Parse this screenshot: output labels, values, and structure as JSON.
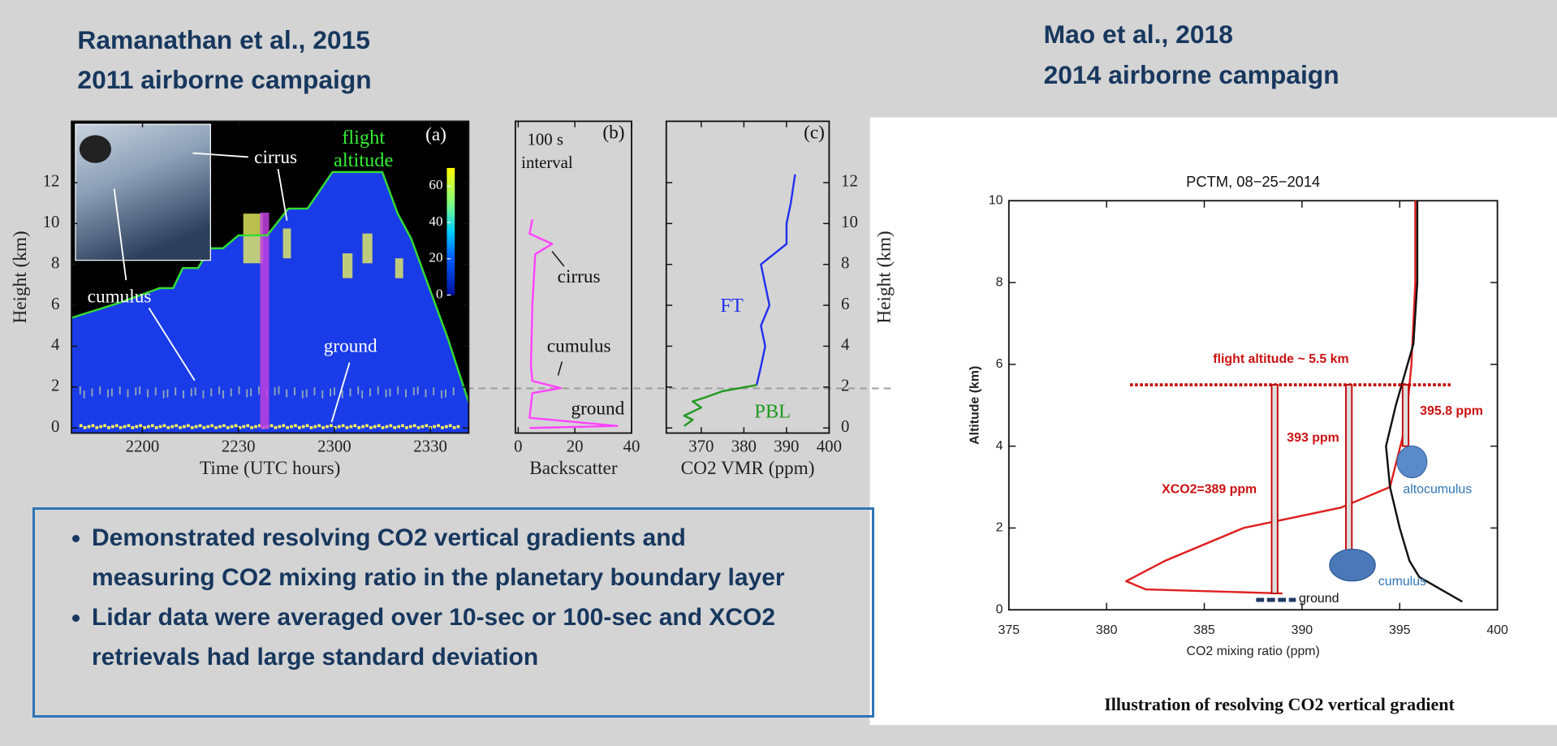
{
  "header": {
    "left_title": [
      "Ramanathan et al., 2015",
      "2011 airborne campaign"
    ],
    "right_title": [
      "Mao et al., 2018",
      "2014 airborne campaign"
    ]
  },
  "chart_data": [
    {
      "type": "area",
      "panel_label": "(a)",
      "title_lines": [
        "flight",
        "altitude"
      ],
      "annotations": [
        "cirrus",
        "cumulus",
        "ground"
      ],
      "xlabel": "Time (UTC hours)",
      "ylabel": "Height (km)",
      "xlim": [
        21.63,
        23.7
      ],
      "ylim": [
        -0.25,
        15
      ],
      "xticks": [
        {
          "value": 22,
          "label": "2200"
        },
        {
          "value": 22.5,
          "label": "2230"
        },
        {
          "value": 23,
          "label": "2300"
        },
        {
          "value": 23.5,
          "label": "2330"
        }
      ],
      "yticks": [
        0,
        2,
        4,
        6,
        8,
        10,
        12
      ],
      "series": [
        {
          "color": "#33dd33",
          "fill": "#1a3ce8",
          "x": [
            21.63,
            21.88,
            22.09,
            22.16,
            22.21,
            22.29,
            22.35,
            22.42,
            22.5,
            22.65,
            22.76,
            22.86,
            22.99,
            23.25,
            23.33,
            23.4,
            23.59,
            23.7
          ],
          "values": [
            5.39,
            6.12,
            6.84,
            6.84,
            7.82,
            7.82,
            8.79,
            8.79,
            9.42,
            9.42,
            10.73,
            10.73,
            12.52,
            12.52,
            10.49,
            9.27,
            4.42,
            1.26
          ]
        }
      ],
      "colorbar": {
        "lim": [
          0,
          70
        ],
        "ticks": [
          0,
          20,
          40,
          60
        ]
      }
    },
    {
      "type": "line",
      "panel_label": "(b)",
      "title_lines": [
        "100 s",
        "interval"
      ],
      "annotations": [
        "cirrus",
        "cumulus",
        "ground"
      ],
      "xlabel": "Backscatter",
      "xlim": [
        -1,
        40
      ],
      "ylim": [
        -0.25,
        15
      ],
      "xticks": [
        0,
        20,
        40
      ],
      "series": [
        {
          "color": "#ff44ff",
          "x": [
            5,
            4,
            12,
            6,
            5,
            4.5,
            5,
            15,
            5,
            4,
            35,
            4
          ],
          "values": [
            10.2,
            9.5,
            9.0,
            8.5,
            6,
            3,
            2.3,
            1.95,
            1.7,
            0.5,
            0.1,
            0
          ]
        }
      ]
    },
    {
      "type": "line",
      "panel_label": "(c)",
      "annotations": [
        "FT",
        "PBL"
      ],
      "xlabel": "CO2 VMR (ppm)",
      "ylabel": "Height (km)",
      "xlim": [
        361.8,
        400
      ],
      "ylim": [
        -0.25,
        15
      ],
      "xticks": [
        370,
        380,
        390,
        400
      ],
      "yticks": [
        0,
        2,
        4,
        6,
        8,
        10,
        12
      ],
      "series": [
        {
          "color": "#2233ee",
          "x": [
            383,
            384,
            385,
            384,
            386,
            385,
            384,
            390,
            390,
            391,
            392
          ],
          "values": [
            2.1,
            3,
            4,
            5,
            6,
            7,
            8,
            9,
            10,
            11,
            12.4
          ]
        },
        {
          "color": "#229922",
          "x": [
            366,
            368,
            366,
            368,
            370,
            368,
            371,
            375,
            383
          ],
          "values": [
            0.1,
            0.4,
            0.6,
            0.8,
            1.0,
            1.3,
            1.5,
            1.8,
            2.1
          ]
        }
      ]
    },
    {
      "type": "line",
      "title": "PCTM, 08−25−2014",
      "xlabel": "CO2 mixing ratio (ppm)",
      "ylabel": "Altitude (km)",
      "xlim": [
        375,
        400
      ],
      "ylim": [
        0,
        10
      ],
      "xticks": [
        375,
        380,
        385,
        390,
        395,
        400
      ],
      "yticks": [
        0,
        2,
        4,
        6,
        8,
        10
      ],
      "series": [
        {
          "color": "#e02020",
          "x": [
            395.8,
            395.8,
            395.6,
            395.3,
            394.5,
            392,
            387,
            383,
            381,
            382,
            389
          ],
          "values": [
            10,
            8,
            6,
            4.5,
            3,
            2.5,
            2,
            1.2,
            0.7,
            0.5,
            0.4
          ]
        },
        {
          "color": "#111111",
          "x": [
            395.9,
            395.9,
            395.7,
            394.8,
            394.3,
            394.5,
            395,
            395.5,
            396,
            398.2
          ],
          "values": [
            10,
            8,
            6.5,
            5,
            4,
            3,
            2,
            1.2,
            0.8,
            0.2
          ]
        }
      ],
      "flight_altitude": 5.5,
      "columns": [
        {
          "x": 388.6,
          "bottom": 0.4
        },
        {
          "x": 392.4,
          "bottom": 1.4
        },
        {
          "x": 395.3,
          "bottom": 4
        }
      ],
      "annotations": [
        "flight altitude ~ 5.5 km",
        "395.8 ppm",
        "393 ppm",
        "XCO2=389 ppm",
        "altocumulus",
        "cumulus",
        "ground"
      ],
      "caption": "Illustration of resolving CO2 vertical gradient"
    }
  ],
  "bullets": [
    "Demonstrated resolving CO2 vertical gradients and measuring CO2 mixing ratio in the planetary boundary layer",
    "Lidar data were averaged over 10-sec or 100-sec and XCO2 retrievals had large standard deviation"
  ]
}
